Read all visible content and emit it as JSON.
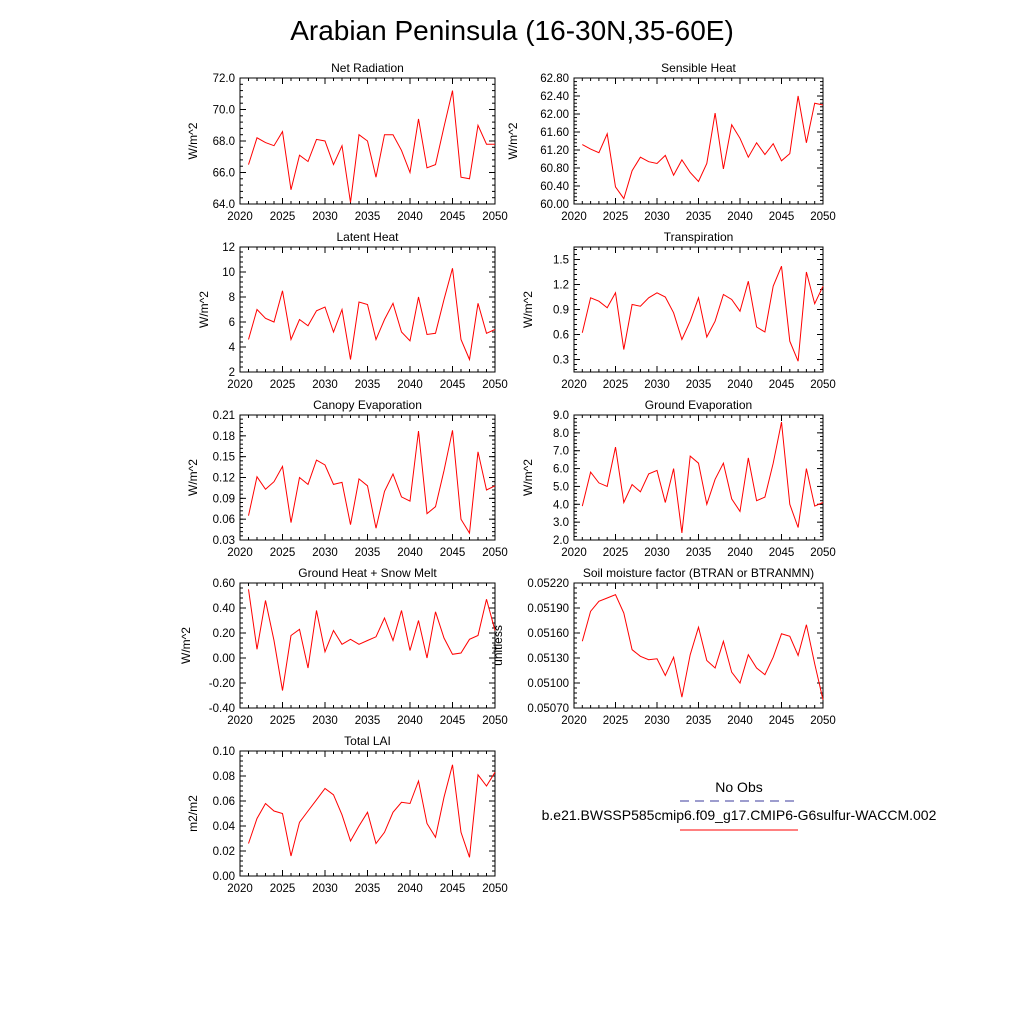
{
  "title": "Arabian Peninsula (16-30N,35-60E)",
  "colors": {
    "model": "#ff0000",
    "obs": "#3b3b9e",
    "axis": "#000000"
  },
  "legend": {
    "obs_label": "No Obs",
    "model_label": "b.e21.BWSSP585cmip6.f09_g17.CMIP6-G6sulfur-WACCM.002"
  },
  "chart_data": [
    {
      "type": "line",
      "title": "Net Radiation",
      "ylabel": "W/m^2",
      "xlim": [
        2020,
        2050
      ],
      "ylim": [
        64.0,
        72.0
      ],
      "xticks": [
        "2020",
        "2025",
        "2030",
        "2035",
        "2040",
        "2045",
        "2050"
      ],
      "yticks": [
        "64.0",
        "66.0",
        "68.0",
        "70.0",
        "72.0"
      ],
      "series": [
        {
          "x": [
            2021,
            2022,
            2023,
            2024,
            2025,
            2026,
            2027,
            2028,
            2029,
            2030,
            2031,
            2032,
            2033,
            2034,
            2035,
            2036,
            2037,
            2038,
            2039,
            2040,
            2041,
            2042,
            2043,
            2044,
            2045,
            2046,
            2047,
            2048,
            2049,
            2050
          ],
          "values": [
            66.5,
            68.2,
            67.9,
            67.7,
            68.6,
            64.9,
            67.1,
            66.7,
            68.1,
            68.0,
            66.5,
            67.7,
            64.1,
            68.4,
            68.0,
            65.7,
            68.4,
            68.4,
            67.4,
            66.0,
            69.4,
            66.3,
            66.5,
            68.9,
            71.2,
            65.7,
            65.6,
            69.0,
            67.8,
            67.8
          ]
        }
      ]
    },
    {
      "type": "line",
      "title": "Sensible Heat",
      "ylabel": "W/m^2",
      "xlim": [
        2020,
        2050
      ],
      "ylim": [
        60.0,
        62.8
      ],
      "xticks": [
        "2020",
        "2025",
        "2030",
        "2035",
        "2040",
        "2045",
        "2050"
      ],
      "yticks": [
        "60.00",
        "60.40",
        "60.80",
        "61.20",
        "61.60",
        "62.00",
        "62.40",
        "62.80"
      ],
      "series": [
        {
          "x": [
            2021,
            2022,
            2023,
            2024,
            2025,
            2026,
            2027,
            2028,
            2029,
            2030,
            2031,
            2032,
            2033,
            2034,
            2035,
            2036,
            2037,
            2038,
            2039,
            2040,
            2041,
            2042,
            2043,
            2044,
            2045,
            2046,
            2047,
            2048,
            2049,
            2050
          ],
          "values": [
            61.32,
            61.22,
            61.14,
            61.56,
            60.38,
            60.12,
            60.74,
            61.04,
            60.94,
            60.9,
            61.08,
            60.64,
            60.98,
            60.7,
            60.5,
            60.9,
            62.02,
            60.78,
            61.76,
            61.46,
            61.04,
            61.36,
            61.1,
            61.34,
            60.96,
            61.12,
            62.4,
            61.36,
            62.24,
            62.2
          ]
        }
      ]
    },
    {
      "type": "line",
      "title": "Latent Heat",
      "ylabel": "W/m^2",
      "xlim": [
        2020,
        2050
      ],
      "ylim": [
        2,
        12
      ],
      "xticks": [
        "2020",
        "2025",
        "2030",
        "2035",
        "2040",
        "2045",
        "2050"
      ],
      "yticks": [
        "2",
        "4",
        "6",
        "8",
        "10",
        "12"
      ],
      "series": [
        {
          "x": [
            2021,
            2022,
            2023,
            2024,
            2025,
            2026,
            2027,
            2028,
            2029,
            2030,
            2031,
            2032,
            2033,
            2034,
            2035,
            2036,
            2037,
            2038,
            2039,
            2040,
            2041,
            2042,
            2043,
            2044,
            2045,
            2046,
            2047,
            2048,
            2049,
            2050
          ],
          "values": [
            4.6,
            7.0,
            6.3,
            6.0,
            8.5,
            4.6,
            6.2,
            5.7,
            6.9,
            7.2,
            5.2,
            7.0,
            3.0,
            7.6,
            7.4,
            4.6,
            6.2,
            7.5,
            5.2,
            4.5,
            8.0,
            5.0,
            5.1,
            7.8,
            10.3,
            4.6,
            3.0,
            7.5,
            5.1,
            5.4
          ]
        }
      ]
    },
    {
      "type": "line",
      "title": "Transpiration",
      "ylabel": "W/m^2",
      "xlim": [
        2020,
        2050
      ],
      "ylim": [
        0.15,
        1.65
      ],
      "xticks": [
        "2020",
        "2025",
        "2030",
        "2035",
        "2040",
        "2045",
        "2050"
      ],
      "yticks": [
        "0.3",
        "0.6",
        "0.9",
        "1.2",
        "1.5"
      ],
      "series": [
        {
          "x": [
            2021,
            2022,
            2023,
            2024,
            2025,
            2026,
            2027,
            2028,
            2029,
            2030,
            2031,
            2032,
            2033,
            2034,
            2035,
            2036,
            2037,
            2038,
            2039,
            2040,
            2041,
            2042,
            2043,
            2044,
            2045,
            2046,
            2047,
            2048,
            2049,
            2050
          ],
          "values": [
            0.62,
            1.04,
            1.0,
            0.92,
            1.1,
            0.42,
            0.96,
            0.94,
            1.04,
            1.1,
            1.05,
            0.86,
            0.54,
            0.76,
            1.04,
            0.57,
            0.76,
            1.08,
            1.02,
            0.88,
            1.24,
            0.69,
            0.63,
            1.18,
            1.42,
            0.52,
            0.28,
            1.35,
            0.97,
            1.18
          ]
        }
      ]
    },
    {
      "type": "line",
      "title": "Canopy Evaporation",
      "ylabel": "W/m^2",
      "xlim": [
        2020,
        2050
      ],
      "ylim": [
        0.03,
        0.21
      ],
      "xticks": [
        "2020",
        "2025",
        "2030",
        "2035",
        "2040",
        "2045",
        "2050"
      ],
      "yticks": [
        "0.03",
        "0.06",
        "0.09",
        "0.12",
        "0.15",
        "0.18",
        "0.21"
      ],
      "series": [
        {
          "x": [
            2021,
            2022,
            2023,
            2024,
            2025,
            2026,
            2027,
            2028,
            2029,
            2030,
            2031,
            2032,
            2033,
            2034,
            2035,
            2036,
            2037,
            2038,
            2039,
            2040,
            2041,
            2042,
            2043,
            2044,
            2045,
            2046,
            2047,
            2048,
            2049,
            2050
          ],
          "values": [
            0.065,
            0.121,
            0.103,
            0.114,
            0.136,
            0.055,
            0.12,
            0.11,
            0.145,
            0.138,
            0.11,
            0.113,
            0.052,
            0.118,
            0.108,
            0.047,
            0.1,
            0.125,
            0.092,
            0.086,
            0.187,
            0.068,
            0.078,
            0.13,
            0.188,
            0.06,
            0.04,
            0.157,
            0.102,
            0.108
          ]
        }
      ]
    },
    {
      "type": "line",
      "title": "Ground Evaporation",
      "ylabel": "W/m^2",
      "xlim": [
        2020,
        2050
      ],
      "ylim": [
        2.0,
        9.0
      ],
      "xticks": [
        "2020",
        "2025",
        "2030",
        "2035",
        "2040",
        "2045",
        "2050"
      ],
      "yticks": [
        "2.0",
        "3.0",
        "4.0",
        "5.0",
        "6.0",
        "7.0",
        "8.0",
        "9.0"
      ],
      "series": [
        {
          "x": [
            2021,
            2022,
            2023,
            2024,
            2025,
            2026,
            2027,
            2028,
            2029,
            2030,
            2031,
            2032,
            2033,
            2034,
            2035,
            2036,
            2037,
            2038,
            2039,
            2040,
            2041,
            2042,
            2043,
            2044,
            2045,
            2046,
            2047,
            2048,
            2049,
            2050
          ],
          "values": [
            3.9,
            5.8,
            5.2,
            5.0,
            7.2,
            4.1,
            5.1,
            4.7,
            5.7,
            5.9,
            4.1,
            6.0,
            2.4,
            6.7,
            6.3,
            4.0,
            5.4,
            6.3,
            4.3,
            3.6,
            6.6,
            4.2,
            4.4,
            6.3,
            8.6,
            4.0,
            2.7,
            6.0,
            3.9,
            4.1
          ]
        }
      ]
    },
    {
      "type": "line",
      "title": "Ground Heat + Snow Melt",
      "ylabel": "W/m^2",
      "xlim": [
        2020,
        2050
      ],
      "ylim": [
        -0.4,
        0.6
      ],
      "xticks": [
        "2020",
        "2025",
        "2030",
        "2035",
        "2040",
        "2045",
        "2050"
      ],
      "yticks": [
        "-0.40",
        "-0.20",
        "0.00",
        "0.20",
        "0.40",
        "0.60"
      ],
      "series": [
        {
          "x": [
            2021,
            2022,
            2023,
            2024,
            2025,
            2026,
            2027,
            2028,
            2029,
            2030,
            2031,
            2032,
            2033,
            2034,
            2035,
            2036,
            2037,
            2038,
            2039,
            2040,
            2041,
            2042,
            2043,
            2044,
            2045,
            2046,
            2047,
            2048,
            2049,
            2050
          ],
          "values": [
            0.55,
            0.07,
            0.46,
            0.14,
            -0.26,
            0.18,
            0.23,
            -0.08,
            0.38,
            0.05,
            0.22,
            0.11,
            0.15,
            0.11,
            0.14,
            0.17,
            0.32,
            0.14,
            0.38,
            0.06,
            0.3,
            0.0,
            0.37,
            0.16,
            0.03,
            0.04,
            0.15,
            0.18,
            0.47,
            0.22
          ]
        }
      ]
    },
    {
      "type": "line",
      "title": "Soil moisture factor (BTRAN or BTRANMN)",
      "ylabel": "unitless",
      "xlim": [
        2020,
        2050
      ],
      "ylim": [
        0.0507,
        0.0522
      ],
      "xticks": [
        "2020",
        "2025",
        "2030",
        "2035",
        "2040",
        "2045",
        "2050"
      ],
      "yticks": [
        "0.05070",
        "0.05100",
        "0.05130",
        "0.05160",
        "0.05190",
        "0.05220"
      ],
      "series": [
        {
          "x": [
            2021,
            2022,
            2023,
            2024,
            2025,
            2026,
            2027,
            2028,
            2029,
            2030,
            2031,
            2032,
            2033,
            2034,
            2035,
            2036,
            2037,
            2038,
            2039,
            2040,
            2041,
            2042,
            2043,
            2044,
            2045,
            2046,
            2047,
            2048,
            2049,
            2050
          ],
          "values": [
            0.0515,
            0.05186,
            0.05198,
            0.05202,
            0.05206,
            0.05184,
            0.0514,
            0.05132,
            0.05128,
            0.05129,
            0.05109,
            0.05131,
            0.05083,
            0.05134,
            0.05167,
            0.05127,
            0.05118,
            0.0515,
            0.05113,
            0.051,
            0.05134,
            0.05118,
            0.0511,
            0.05131,
            0.05159,
            0.05156,
            0.05133,
            0.0517,
            0.05123,
            0.0508
          ]
        }
      ]
    },
    {
      "type": "line",
      "title": "Total LAI",
      "ylabel": "m2/m2",
      "xlim": [
        2020,
        2050
      ],
      "ylim": [
        0.0,
        0.1
      ],
      "xticks": [
        "2020",
        "2025",
        "2030",
        "2035",
        "2040",
        "2045",
        "2050"
      ],
      "yticks": [
        "0.00",
        "0.02",
        "0.04",
        "0.06",
        "0.08",
        "0.10"
      ],
      "series": [
        {
          "x": [
            2021,
            2022,
            2023,
            2024,
            2025,
            2026,
            2027,
            2028,
            2029,
            2030,
            2031,
            2032,
            2033,
            2034,
            2035,
            2036,
            2037,
            2038,
            2039,
            2040,
            2041,
            2042,
            2043,
            2044,
            2045,
            2046,
            2047,
            2048,
            2049,
            2050
          ],
          "values": [
            0.026,
            0.046,
            0.058,
            0.052,
            0.05,
            0.016,
            0.043,
            0.052,
            0.061,
            0.07,
            0.065,
            0.049,
            0.028,
            0.04,
            0.051,
            0.026,
            0.035,
            0.051,
            0.059,
            0.058,
            0.076,
            0.042,
            0.031,
            0.063,
            0.089,
            0.035,
            0.015,
            0.081,
            0.072,
            0.083
          ]
        }
      ]
    }
  ]
}
